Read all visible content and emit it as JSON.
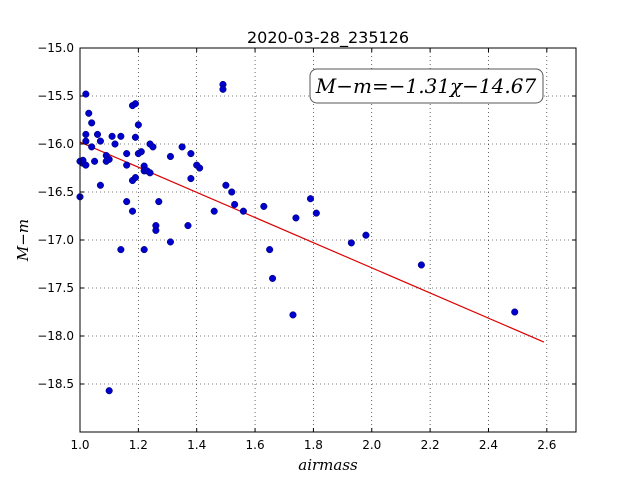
{
  "chart_data": {
    "type": "scatter",
    "title": "2020-03-28_235126",
    "xlabel": "airmass",
    "ylabel": "M−m",
    "xlim": [
      1.0,
      2.7
    ],
    "ylim": [
      -15.0,
      -19.0
    ],
    "y_inverted": true,
    "grid": true,
    "xticks": [
      1.0,
      1.2,
      1.4,
      1.6,
      1.8,
      2.0,
      2.2,
      2.4,
      2.6
    ],
    "yticks": [
      -15.0,
      -15.5,
      -16.0,
      -16.5,
      -17.0,
      -17.5,
      -18.0,
      -18.5
    ],
    "annotation": "M−m=−1.31χ−14.67",
    "point_color": "#0000cc",
    "fit_color": "#dd0000",
    "fit": {
      "slope": -1.31,
      "intercept": -14.67,
      "x_start": 1.0,
      "x_end": 2.59
    },
    "points": [
      [
        1.0,
        -16.55
      ],
      [
        1.0,
        -16.18
      ],
      [
        1.01,
        -16.2
      ],
      [
        1.01,
        -16.17
      ],
      [
        1.02,
        -15.48
      ],
      [
        1.02,
        -15.9
      ],
      [
        1.02,
        -15.97
      ],
      [
        1.02,
        -16.22
      ],
      [
        1.03,
        -15.68
      ],
      [
        1.04,
        -15.78
      ],
      [
        1.04,
        -16.03
      ],
      [
        1.05,
        -16.18
      ],
      [
        1.06,
        -15.9
      ],
      [
        1.07,
        -15.97
      ],
      [
        1.07,
        -16.43
      ],
      [
        1.09,
        -16.12
      ],
      [
        1.09,
        -16.18
      ],
      [
        1.1,
        -16.16
      ],
      [
        1.1,
        -18.57
      ],
      [
        1.11,
        -15.92
      ],
      [
        1.12,
        -16.0
      ],
      [
        1.14,
        -15.92
      ],
      [
        1.14,
        -17.1
      ],
      [
        1.16,
        -16.1
      ],
      [
        1.16,
        -16.22
      ],
      [
        1.16,
        -16.6
      ],
      [
        1.18,
        -15.6
      ],
      [
        1.18,
        -16.38
      ],
      [
        1.18,
        -16.7
      ],
      [
        1.19,
        -15.58
      ],
      [
        1.19,
        -15.93
      ],
      [
        1.19,
        -16.35
      ],
      [
        1.2,
        -15.8
      ],
      [
        1.2,
        -16.1
      ],
      [
        1.21,
        -16.08
      ],
      [
        1.22,
        -16.23
      ],
      [
        1.22,
        -16.28
      ],
      [
        1.22,
        -17.1
      ],
      [
        1.23,
        -16.28
      ],
      [
        1.24,
        -16.0
      ],
      [
        1.24,
        -16.3
      ],
      [
        1.25,
        -16.03
      ],
      [
        1.26,
        -16.85
      ],
      [
        1.26,
        -16.9
      ],
      [
        1.27,
        -16.6
      ],
      [
        1.31,
        -16.13
      ],
      [
        1.31,
        -17.02
      ],
      [
        1.35,
        -16.03
      ],
      [
        1.37,
        -16.85
      ],
      [
        1.38,
        -16.1
      ],
      [
        1.38,
        -16.36
      ],
      [
        1.4,
        -16.22
      ],
      [
        1.41,
        -16.25
      ],
      [
        1.46,
        -16.7
      ],
      [
        1.49,
        -15.38
      ],
      [
        1.49,
        -15.43
      ],
      [
        1.5,
        -16.43
      ],
      [
        1.52,
        -16.5
      ],
      [
        1.53,
        -16.63
      ],
      [
        1.56,
        -16.7
      ],
      [
        1.63,
        -16.65
      ],
      [
        1.65,
        -17.1
      ],
      [
        1.66,
        -17.4
      ],
      [
        1.73,
        -17.78
      ],
      [
        1.74,
        -16.77
      ],
      [
        1.79,
        -16.57
      ],
      [
        1.81,
        -16.72
      ],
      [
        1.93,
        -17.03
      ],
      [
        1.98,
        -16.95
      ],
      [
        2.17,
        -17.26
      ],
      [
        2.49,
        -17.75
      ]
    ]
  }
}
